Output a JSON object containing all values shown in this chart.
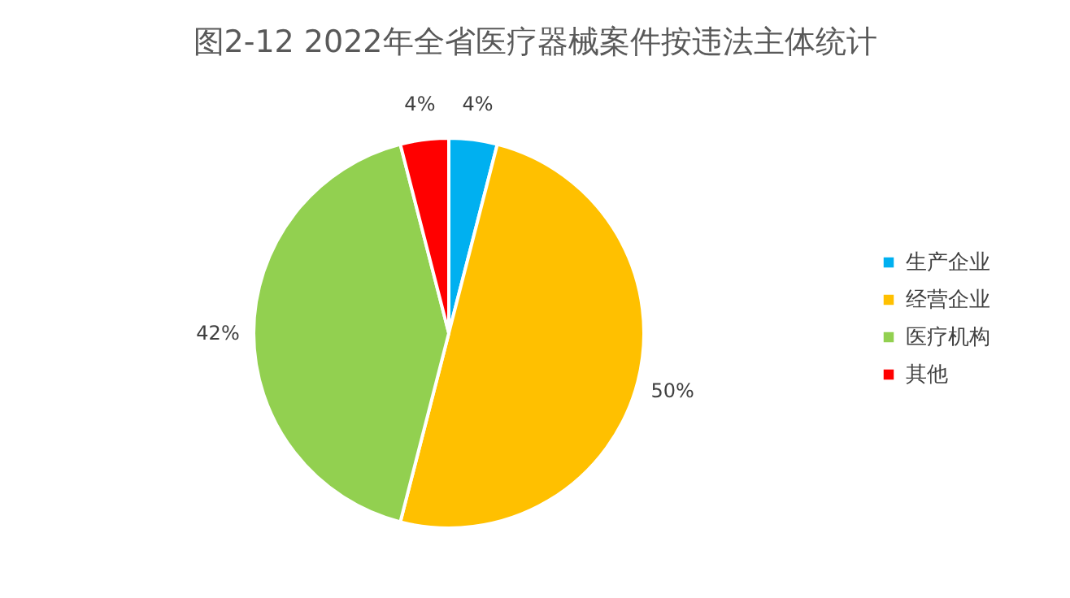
{
  "chart_data": {
    "type": "pie",
    "title": "图2-12  2022年全省医疗器械案件按违法主体统计",
    "categories": [
      "生产企业",
      "经营企业",
      "医疗机构",
      "其他"
    ],
    "values": [
      4,
      50,
      42,
      4
    ],
    "colors": [
      "#00b0f0",
      "#ffc000",
      "#92d050",
      "#ff0000"
    ],
    "value_labels": [
      "4%",
      "50%",
      "42%",
      "4%"
    ],
    "legend": "right"
  }
}
